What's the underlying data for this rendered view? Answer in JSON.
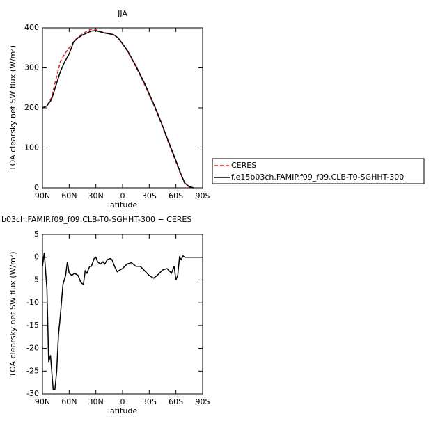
{
  "chart_data": [
    {
      "type": "line",
      "title": "JJA",
      "ylabel": "TOA clearsky net SW flux (W/m²)",
      "xlabel": "latitude",
      "xlim": [
        90,
        -90
      ],
      "ylim": [
        0,
        400
      ],
      "xticks": [
        {
          "value": 90,
          "label": "90N"
        },
        {
          "value": 60,
          "label": "60N"
        },
        {
          "value": 30,
          "label": "30N"
        },
        0,
        {
          "value": -30,
          "label": "30S"
        },
        {
          "value": -60,
          "label": "60S"
        },
        {
          "value": -90,
          "label": "90S"
        }
      ],
      "yticks": [
        0,
        100,
        200,
        300,
        400
      ],
      "x": [
        90,
        85,
        80,
        75,
        70,
        65,
        60,
        55,
        50,
        45,
        40,
        35,
        30,
        25,
        20,
        15,
        10,
        5,
        0,
        -5,
        -10,
        -15,
        -20,
        -25,
        -30,
        -35,
        -40,
        -45,
        -50,
        -55,
        -60,
        -65,
        -70,
        -75,
        -80
      ],
      "series": [
        {
          "name": "CERES",
          "color": "#d42020",
          "dashed": true,
          "values": [
            200,
            205,
            225,
            270,
            315,
            335,
            350,
            365,
            377,
            385,
            392,
            397,
            395,
            391,
            388,
            386,
            383,
            375,
            360,
            343,
            323,
            302,
            280,
            257,
            232,
            207,
            180,
            152,
            122,
            94,
            65,
            35,
            10,
            2,
            0
          ]
        },
        {
          "name": "f.e15b03ch.FAMIP.f09_f09.CLB-T0-SGHHT-300",
          "color": "#000000",
          "dashed": false,
          "values": [
            200,
            205,
            220,
            255,
            290,
            315,
            335,
            365,
            375,
            382,
            387,
            392,
            393,
            390,
            387,
            385,
            383,
            375,
            360,
            345,
            325,
            305,
            283,
            260,
            235,
            210,
            183,
            155,
            125,
            97,
            68,
            38,
            12,
            3,
            0
          ]
        }
      ]
    },
    {
      "type": "line",
      "title": "b03ch.FAMIP.f09_f09.CLB-T0-SGHHT-300 − CERES",
      "ylabel": "TOA clearsky net SW flux (W/m²)",
      "xlabel": "latitude",
      "xlim": [
        90,
        -90
      ],
      "ylim": [
        -30,
        5
      ],
      "xticks": [
        {
          "value": 90,
          "label": "90N"
        },
        {
          "value": 60,
          "label": "60N"
        },
        {
          "value": 30,
          "label": "30N"
        },
        0,
        {
          "value": -30,
          "label": "30S"
        },
        {
          "value": -60,
          "label": "60S"
        },
        {
          "value": -90,
          "label": "90S"
        }
      ],
      "yticks": [
        -30,
        -25,
        -20,
        -15,
        -10,
        -5,
        0,
        5
      ],
      "color": "#000000",
      "x": [
        90,
        88,
        85,
        83,
        81,
        78,
        76,
        74,
        72,
        70,
        67,
        64,
        62,
        60,
        57,
        54,
        50,
        47,
        44,
        42,
        40,
        37,
        35,
        32,
        30,
        28,
        25,
        22,
        20,
        17,
        14,
        12,
        9,
        6,
        3,
        0,
        -5,
        -10,
        -15,
        -20,
        -25,
        -30,
        -35,
        -40,
        -45,
        -50,
        -55,
        -58,
        -60,
        -62,
        -64,
        -66,
        -68,
        -70,
        -75,
        -80,
        -85,
        -90
      ],
      "values": [
        -2,
        1,
        -7,
        -23,
        -21.5,
        -29,
        -29,
        -25,
        -17,
        -13,
        -6,
        -4,
        -1,
        -3.5,
        -4,
        -3.5,
        -4,
        -5.5,
        -6,
        -3,
        -3.5,
        -2,
        -2,
        -0.3,
        0,
        -1,
        -1.5,
        -1,
        -1.5,
        -0.5,
        -0.3,
        -0.5,
        -2,
        -3.2,
        -2.8,
        -2.5,
        -1.5,
        -1.2,
        -2,
        -2,
        -3,
        -4,
        -4.6,
        -3.8,
        -2.8,
        -2.5,
        -3.5,
        -2,
        -5,
        -4,
        0,
        -0.5,
        0.3,
        0,
        0,
        0,
        0,
        0
      ]
    }
  ]
}
